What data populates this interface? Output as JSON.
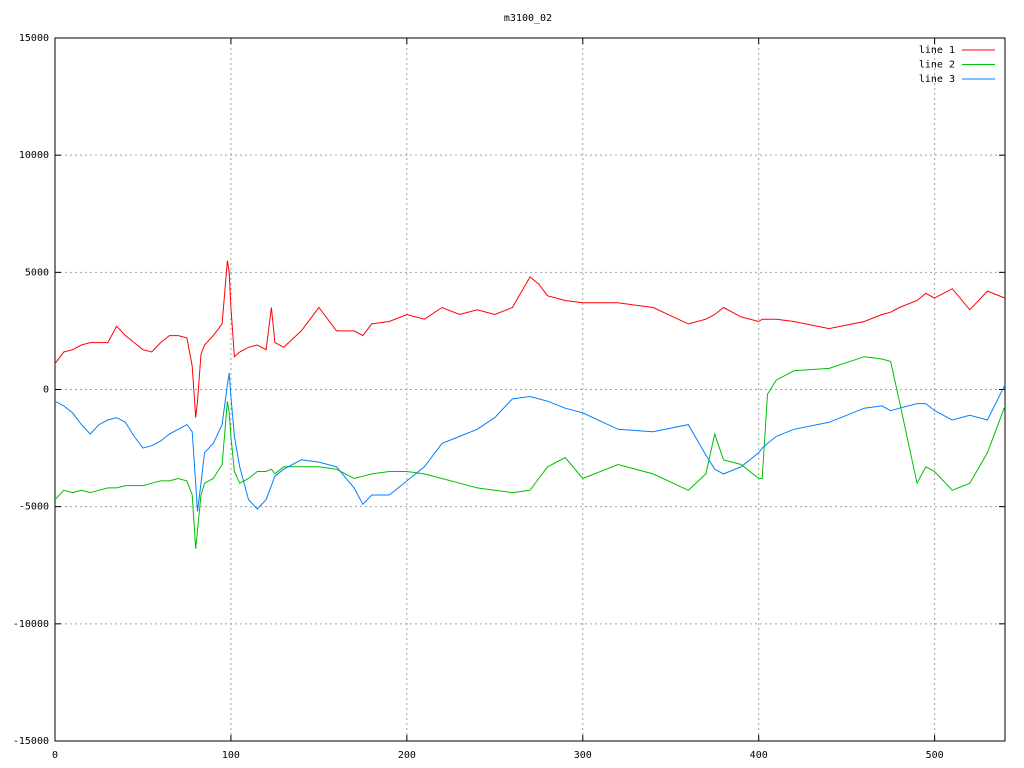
{
  "chart_data": {
    "type": "line",
    "title": "m3100_02",
    "x": [
      0,
      5,
      10,
      15,
      20,
      25,
      30,
      35,
      40,
      45,
      50,
      55,
      60,
      65,
      70,
      75,
      78,
      80,
      81,
      83,
      85,
      90,
      95,
      98,
      99,
      100,
      102,
      105,
      110,
      115,
      120,
      123,
      125,
      130,
      140,
      150,
      160,
      170,
      175,
      180,
      190,
      200,
      210,
      220,
      230,
      240,
      250,
      260,
      270,
      275,
      280,
      290,
      300,
      320,
      340,
      360,
      370,
      375,
      380,
      390,
      400,
      402,
      405,
      410,
      420,
      440,
      460,
      470,
      475,
      480,
      490,
      495,
      500,
      510,
      520,
      530,
      540
    ],
    "series": [
      {
        "name": "line 1",
        "color": "#ff0000",
        "values": [
          1100,
          1600,
          1700,
          1900,
          2000,
          2000,
          2000,
          2700,
          2300,
          2000,
          1700,
          1600,
          2000,
          2300,
          2300,
          2200,
          1000,
          -1200,
          -500,
          1500,
          1900,
          2300,
          2800,
          5500,
          5000,
          3500,
          1400,
          1600,
          1800,
          1900,
          1700,
          3500,
          2000,
          1800,
          2500,
          3500,
          2500,
          2500,
          2300,
          2800,
          2900,
          3200,
          3000,
          3500,
          3200,
          3400,
          3200,
          3500,
          4800,
          4500,
          4000,
          3800,
          3700,
          3700,
          3500,
          2800,
          3000,
          3200,
          3500,
          3100,
          2900,
          3000,
          3000,
          3000,
          2900,
          2600,
          2900,
          3200,
          3300,
          3500,
          3800,
          4100,
          3900,
          4300,
          3400,
          4200,
          3900
        ]
      },
      {
        "name": "line 2",
        "color": "#00c000",
        "values": [
          -4700,
          -4300,
          -4400,
          -4300,
          -4400,
          -4300,
          -4200,
          -4200,
          -4100,
          -4100,
          -4100,
          -4000,
          -3900,
          -3900,
          -3800,
          -3900,
          -4500,
          -6800,
          -6000,
          -4500,
          -4000,
          -3800,
          -3200,
          -500,
          -1000,
          -2000,
          -3500,
          -4000,
          -3800,
          -3500,
          -3500,
          -3400,
          -3600,
          -3300,
          -3300,
          -3300,
          -3400,
          -3800,
          -3700,
          -3600,
          -3500,
          -3500,
          -3600,
          -3800,
          -4000,
          -4200,
          -4300,
          -4400,
          -4300,
          -3800,
          -3300,
          -2900,
          -3800,
          -3200,
          -3600,
          -4300,
          -3600,
          -1900,
          -3000,
          -3200,
          -3800,
          -3800,
          -200,
          400,
          800,
          900,
          1400,
          1300,
          1200,
          -500,
          -4000,
          -3300,
          -3500,
          -4300,
          -4000,
          -2700,
          -700
        ]
      },
      {
        "name": "line 3",
        "color": "#0080ff",
        "values": [
          -500,
          -700,
          -1000,
          -1500,
          -1900,
          -1500,
          -1300,
          -1200,
          -1400,
          -2000,
          -2500,
          -2400,
          -2200,
          -1900,
          -1700,
          -1500,
          -1800,
          -4000,
          -5200,
          -4000,
          -2700,
          -2300,
          -1500,
          200,
          700,
          -300,
          -2000,
          -3300,
          -4700,
          -5100,
          -4700,
          -4100,
          -3700,
          -3400,
          -3000,
          -3100,
          -3300,
          -4200,
          -4900,
          -4500,
          -4500,
          -3900,
          -3300,
          -2300,
          -2000,
          -1700,
          -1200,
          -400,
          -300,
          -400,
          -500,
          -800,
          -1000,
          -1700,
          -1800,
          -1500,
          -2800,
          -3400,
          -3600,
          -3300,
          -2700,
          -2500,
          -2300,
          -2000,
          -1700,
          -1400,
          -800,
          -700,
          -900,
          -800,
          -600,
          -600,
          -900,
          -1300,
          -1100,
          -1300,
          200
        ]
      }
    ],
    "xlim": [
      0,
      540
    ],
    "xticks": [
      0,
      100,
      200,
      300,
      400,
      500
    ],
    "ylim": [
      -15000,
      15000
    ],
    "yticks": [
      -15000,
      -10000,
      -5000,
      0,
      5000,
      10000,
      15000
    ],
    "grid": true,
    "legend": "top-right"
  }
}
